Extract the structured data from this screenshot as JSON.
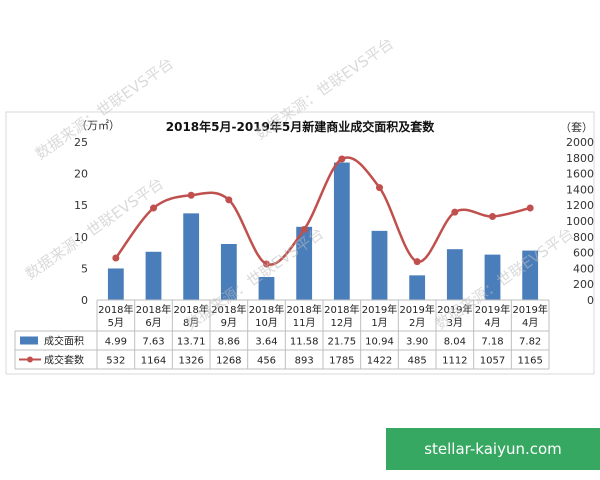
{
  "watermarks": [
    "数据来源：世联EVS平台",
    "数据来源：世联EVS平台",
    "数据来源：世联EVS平台",
    "数据来源：世联EVS平台",
    "数据来源：世联EVS平台"
  ],
  "banner": {
    "text": "stellar-kaiyun.com"
  },
  "chart_data": {
    "type": "bar+line",
    "title": "2018年5月-2019年5月新建商业成交面积及套数",
    "left_axis": {
      "unit": "（万㎡）",
      "ticks": [
        0,
        5,
        10,
        15,
        20,
        25
      ],
      "ylim": [
        0,
        25
      ]
    },
    "right_axis": {
      "unit": "（套）",
      "ticks": [
        0,
        200,
        400,
        600,
        800,
        1000,
        1200,
        1400,
        1600,
        1800,
        2000
      ],
      "ylim": [
        0,
        2000
      ]
    },
    "categories": [
      [
        "2018年",
        "5月"
      ],
      [
        "2018年",
        "6月"
      ],
      [
        "2018年",
        "8月"
      ],
      [
        "2018年",
        "9月"
      ],
      [
        "2018年",
        "10月"
      ],
      [
        "2018年",
        "11月"
      ],
      [
        "2018年",
        "12月"
      ],
      [
        "2019年",
        "1月"
      ],
      [
        "2019年",
        "2月"
      ],
      [
        "2019年",
        "3月"
      ],
      [
        "2019年",
        "4月"
      ],
      [
        "2019年",
        "4月"
      ]
    ],
    "series": [
      {
        "name": "成交面积",
        "type": "bar",
        "axis": "left",
        "color": "#4a7ebb",
        "values": [
          4.99,
          7.63,
          13.71,
          8.86,
          3.64,
          11.58,
          21.75,
          10.94,
          3.9,
          8.04,
          7.18,
          7.82
        ],
        "labels": [
          "4.99",
          "7.63",
          "13.71",
          "8.86",
          "3.64",
          "11.58",
          "21.75",
          "10.94",
          "3.90",
          "8.04",
          "7.18",
          "7.82"
        ]
      },
      {
        "name": "成交套数",
        "type": "line",
        "axis": "right",
        "color": "#c0504d",
        "values": [
          532,
          1164,
          1326,
          1268,
          456,
          893,
          1785,
          1422,
          485,
          1112,
          1057,
          1165
        ],
        "labels": [
          "532",
          "1164",
          "1326",
          "1268",
          "456",
          "893",
          "1785",
          "1422",
          "485",
          "1112",
          "1057",
          "1165"
        ]
      }
    ],
    "legend": "data-table",
    "grid": false
  }
}
